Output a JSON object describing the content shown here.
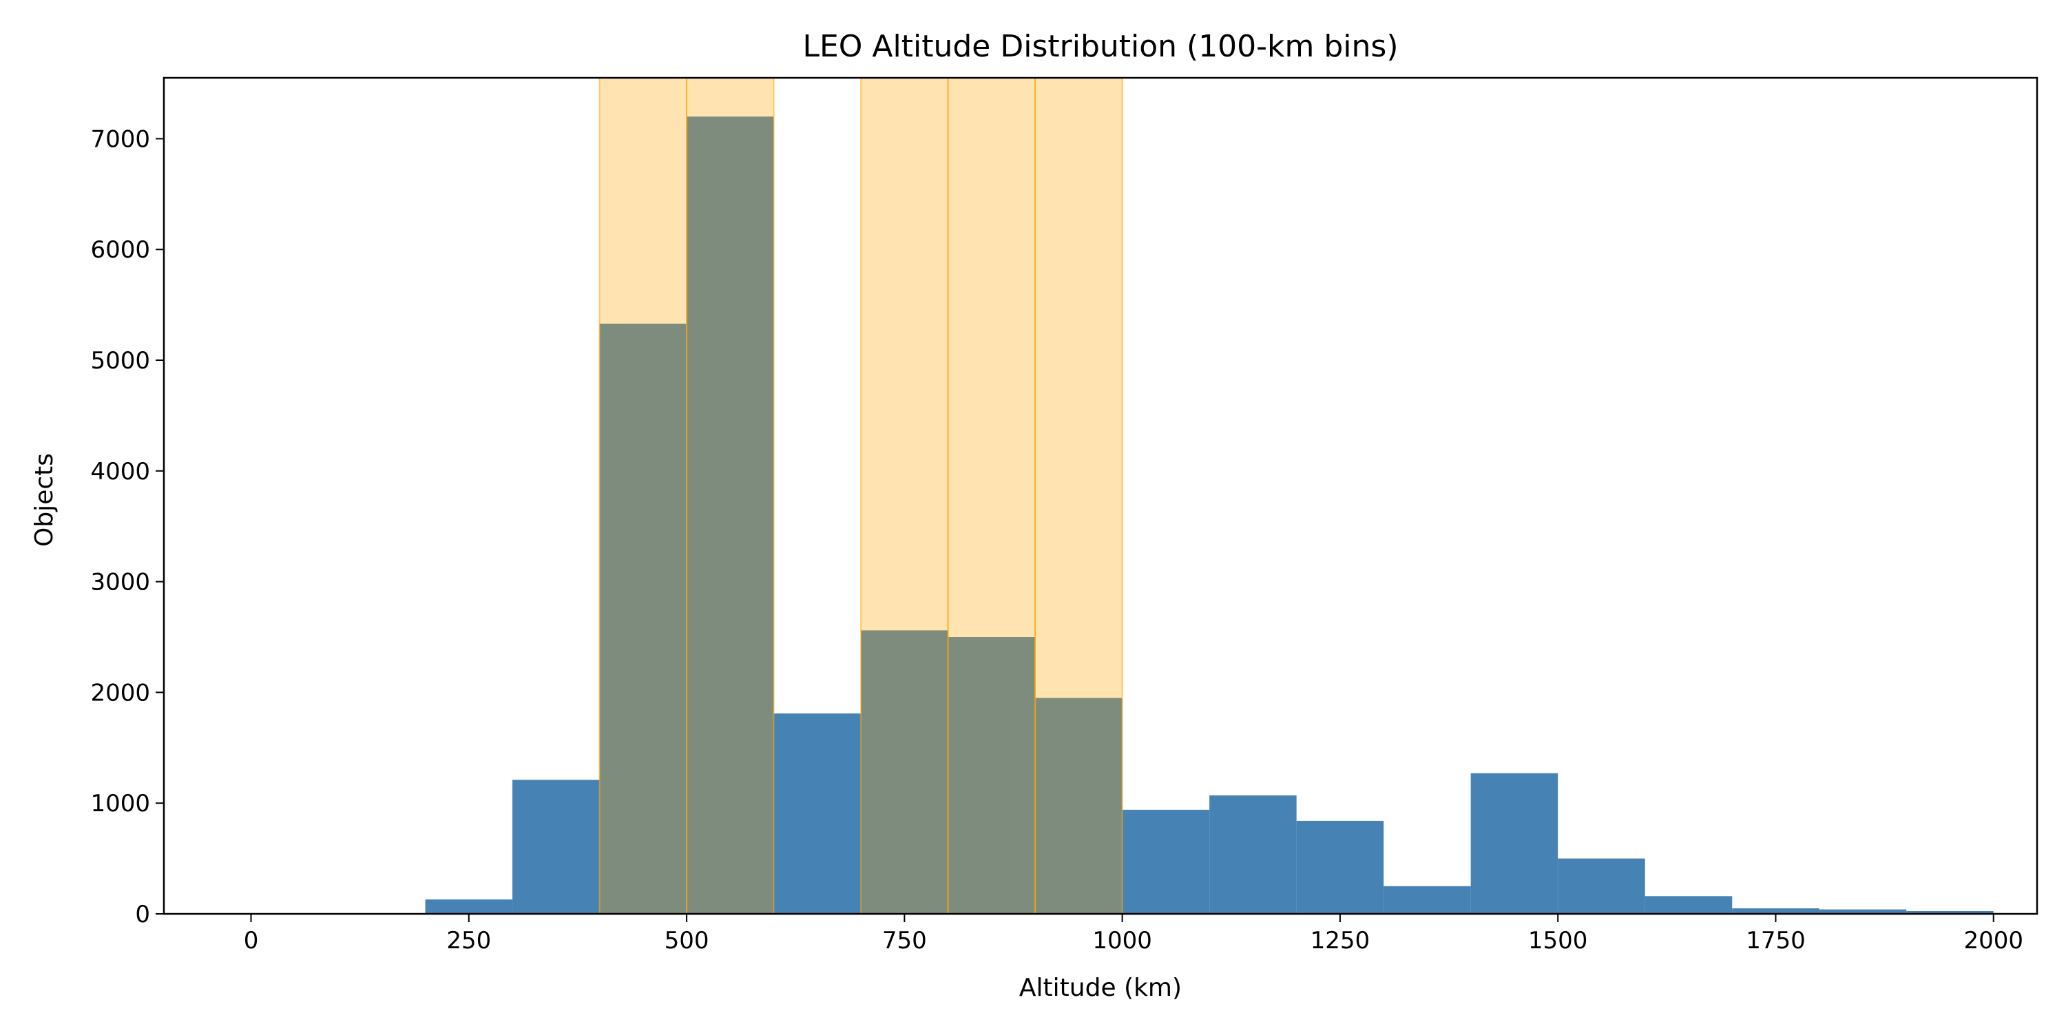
{
  "chart_data": {
    "type": "bar",
    "title": "LEO Altitude Distribution (100-km bins)",
    "xlabel": "Altitude (km)",
    "ylabel": "Objects",
    "xlim": [
      -100,
      2050
    ],
    "ylim": [
      0,
      7550
    ],
    "x_ticks": [
      0,
      250,
      500,
      750,
      1000,
      1250,
      1500,
      1750,
      2000
    ],
    "y_ticks": [
      0,
      1000,
      2000,
      3000,
      4000,
      5000,
      6000,
      7000
    ],
    "bin_width": 100,
    "bins": [
      {
        "start": 0,
        "end": 100,
        "value": 0
      },
      {
        "start": 100,
        "end": 200,
        "value": 0
      },
      {
        "start": 200,
        "end": 300,
        "value": 130
      },
      {
        "start": 300,
        "end": 400,
        "value": 1210
      },
      {
        "start": 400,
        "end": 500,
        "value": 5330
      },
      {
        "start": 500,
        "end": 600,
        "value": 7200
      },
      {
        "start": 600,
        "end": 700,
        "value": 1810
      },
      {
        "start": 700,
        "end": 800,
        "value": 2560
      },
      {
        "start": 800,
        "end": 900,
        "value": 2500
      },
      {
        "start": 900,
        "end": 1000,
        "value": 1950
      },
      {
        "start": 1000,
        "end": 1100,
        "value": 940
      },
      {
        "start": 1100,
        "end": 1200,
        "value": 1070
      },
      {
        "start": 1200,
        "end": 1300,
        "value": 840
      },
      {
        "start": 1300,
        "end": 1400,
        "value": 250
      },
      {
        "start": 1400,
        "end": 1500,
        "value": 1270
      },
      {
        "start": 1500,
        "end": 1600,
        "value": 500
      },
      {
        "start": 1600,
        "end": 1700,
        "value": 160
      },
      {
        "start": 1700,
        "end": 1800,
        "value": 50
      },
      {
        "start": 1800,
        "end": 1900,
        "value": 40
      },
      {
        "start": 1900,
        "end": 2000,
        "value": 25
      }
    ],
    "highlighted_bands": [
      {
        "start": 400,
        "end": 500
      },
      {
        "start": 500,
        "end": 600
      },
      {
        "start": 700,
        "end": 800
      },
      {
        "start": 800,
        "end": 900
      },
      {
        "start": 900,
        "end": 1000
      }
    ],
    "grid": false,
    "legend": "none",
    "colors": {
      "bar": "#4682b4",
      "highlight_fill": "#ffa500",
      "highlight_edge": "#ffa500",
      "axis": "#000000"
    }
  }
}
